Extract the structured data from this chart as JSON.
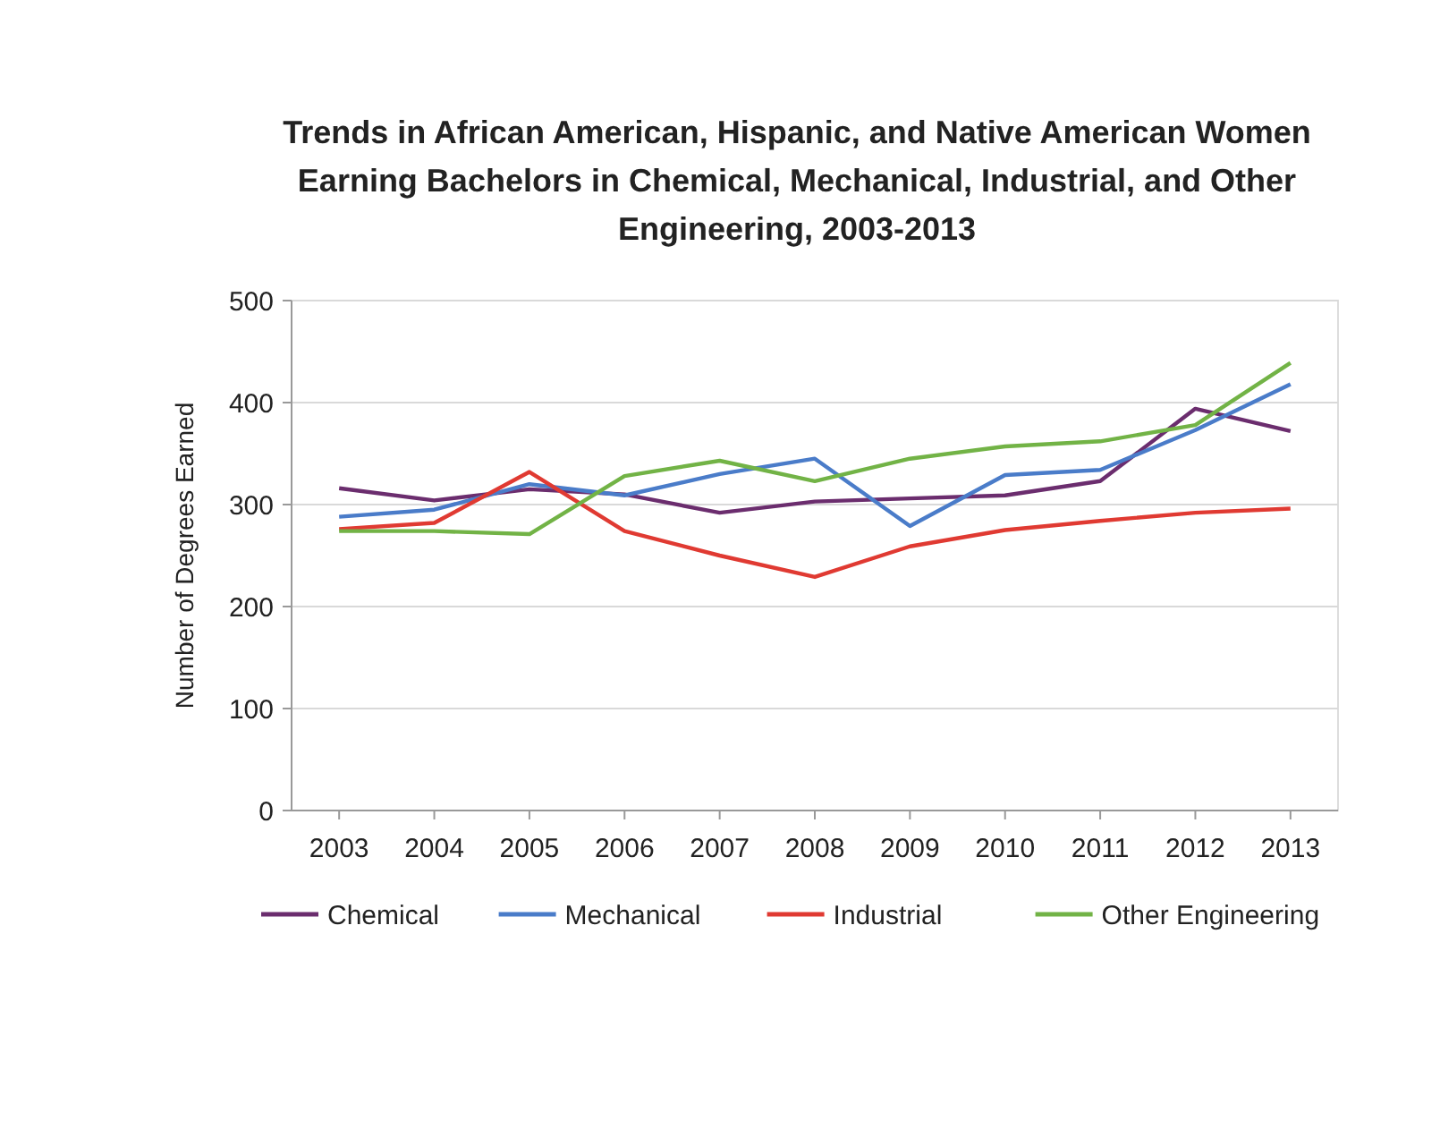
{
  "chart_data": {
    "type": "line",
    "title": "Trends in African American, Hispanic, and Native American Women Earning Bachelors in Chemical, Mechanical, Industrial, and Other Engineering, 2003-2013",
    "ylabel": "Number of Degrees Earned",
    "categories": [
      "2003",
      "2004",
      "2005",
      "2006",
      "2007",
      "2008",
      "2009",
      "2010",
      "2011",
      "2012",
      "2013"
    ],
    "series": [
      {
        "name": "Chemical",
        "color": "#6b2d6e",
        "values": [
          316,
          304,
          315,
          310,
          292,
          303,
          306,
          309,
          323,
          394,
          372
        ]
      },
      {
        "name": "Mechanical",
        "color": "#4a7cc9",
        "values": [
          288,
          295,
          320,
          309,
          330,
          345,
          279,
          329,
          334,
          373,
          418
        ]
      },
      {
        "name": "Industrial",
        "color": "#e03a32",
        "values": [
          276,
          282,
          332,
          274,
          250,
          229,
          259,
          275,
          284,
          292,
          296
        ]
      },
      {
        "name": "Other Engineering",
        "color": "#72b346",
        "values": [
          274,
          274,
          271,
          328,
          343,
          323,
          345,
          357,
          362,
          378,
          439
        ]
      }
    ],
    "ylim": [
      0,
      500
    ],
    "yticks": [
      0,
      100,
      200,
      300,
      400,
      500
    ],
    "grid": "y",
    "legend": "bottom",
    "marker": "none",
    "line_style": "solid"
  }
}
